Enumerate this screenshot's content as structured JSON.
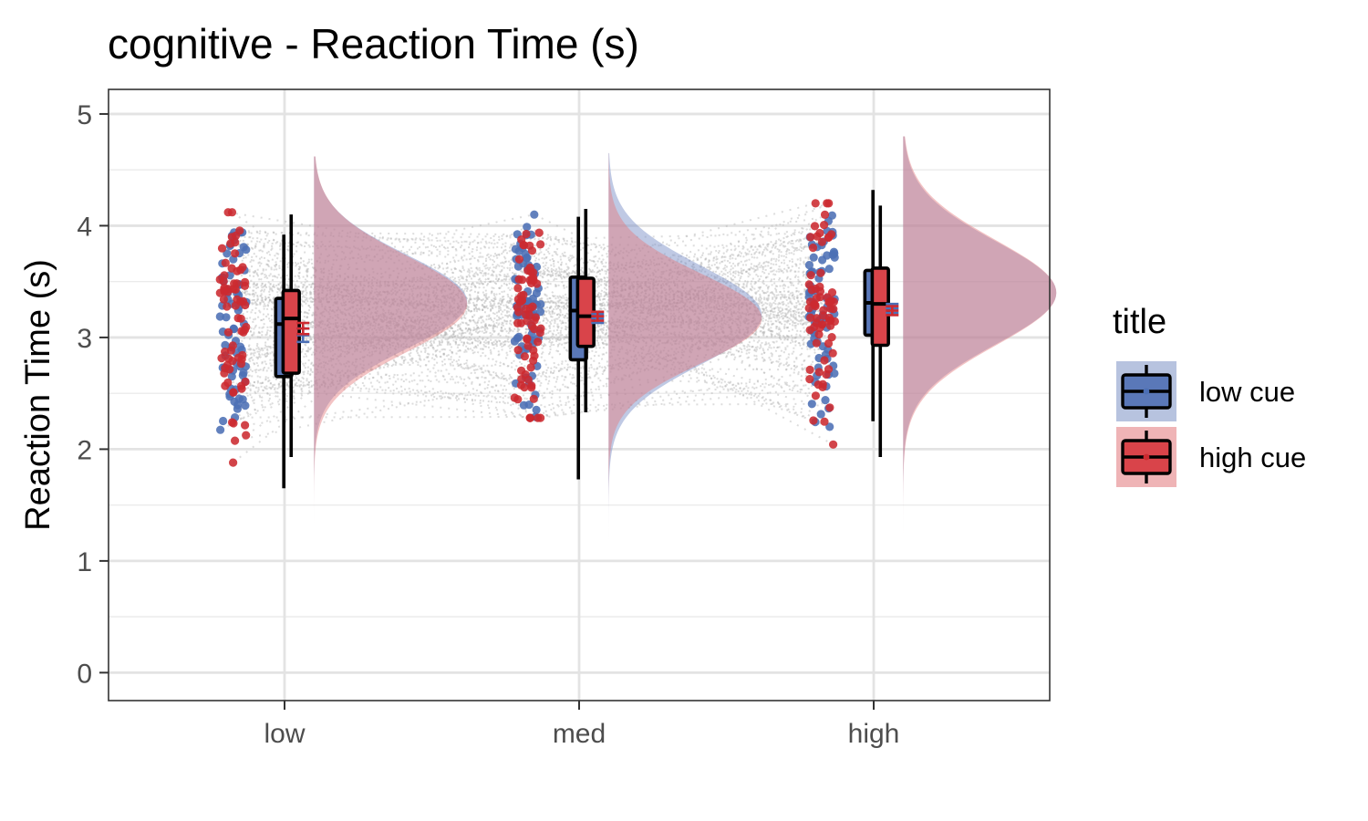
{
  "chart_data": {
    "type": "raincloud",
    "title": "cognitive  - Reaction Time (s)",
    "xlabel": "",
    "ylabel": "Reaction Time (s)",
    "ylim": [
      -0.25,
      5.22
    ],
    "yticks": [
      0,
      1,
      2,
      3,
      4,
      5
    ],
    "categories": [
      "low",
      "med",
      "high"
    ],
    "grid": true,
    "legend": {
      "title": "title",
      "position": "right"
    },
    "series": [
      {
        "name": "low cue",
        "color": "#4c6fb5",
        "fill": "#5a78b8",
        "box": [
          {
            "category": "low",
            "whisker_low": 1.65,
            "q1": 2.65,
            "median": 3.12,
            "q3": 3.35,
            "whisker_high": 3.92
          },
          {
            "category": "med",
            "whisker_low": 1.73,
            "q1": 2.8,
            "median": 3.24,
            "q3": 3.54,
            "whisker_high": 4.08
          },
          {
            "category": "high",
            "whisker_low": 2.25,
            "q1": 3.02,
            "median": 3.31,
            "q3": 3.6,
            "whisker_high": 4.32
          }
        ],
        "mean": [
          {
            "category": "low",
            "value": 3.02,
            "ci": 0.06
          },
          {
            "category": "med",
            "value": 3.17,
            "ci": 0.04
          },
          {
            "category": "high",
            "value": 3.26,
            "ci": 0.04
          }
        ],
        "density": [
          {
            "category": "low",
            "mean": 3.32,
            "sd": 0.42,
            "range": [
              1.12,
              4.62
            ]
          },
          {
            "category": "med",
            "mean": 3.2,
            "sd": 0.44,
            "range": [
              1.18,
              4.65
            ]
          },
          {
            "category": "high",
            "mean": 3.4,
            "sd": 0.46,
            "range": [
              1.22,
              4.8
            ]
          }
        ]
      },
      {
        "name": "high cue",
        "color": "#cc2a30",
        "fill": "#d9444a",
        "box": [
          {
            "category": "low",
            "whisker_low": 1.93,
            "q1": 2.68,
            "median": 3.17,
            "q3": 3.42,
            "whisker_high": 4.1
          },
          {
            "category": "med",
            "whisker_low": 2.33,
            "q1": 2.92,
            "median": 3.19,
            "q3": 3.53,
            "whisker_high": 4.15
          },
          {
            "category": "high",
            "whisker_low": 1.93,
            "q1": 2.93,
            "median": 3.3,
            "q3": 3.62,
            "whisker_high": 4.18
          }
        ],
        "mean": [
          {
            "category": "low",
            "value": 3.08,
            "ci": 0.05
          },
          {
            "category": "med",
            "value": 3.19,
            "ci": 0.04
          },
          {
            "category": "high",
            "value": 3.24,
            "ci": 0.04
          }
        ],
        "density": [
          {
            "category": "low",
            "mean": 3.3,
            "sd": 0.43,
            "range": [
              1.12,
              4.62
            ]
          },
          {
            "category": "med",
            "mean": 3.17,
            "sd": 0.4,
            "range": [
              1.18,
              4.65
            ]
          },
          {
            "category": "high",
            "mean": 3.4,
            "sd": 0.47,
            "range": [
              1.14,
              4.8
            ]
          }
        ]
      }
    ],
    "points": {
      "per_category": 70,
      "jitter_spread": 0.09,
      "connecting_lines": true,
      "line_color": "#b3b3b3"
    }
  }
}
